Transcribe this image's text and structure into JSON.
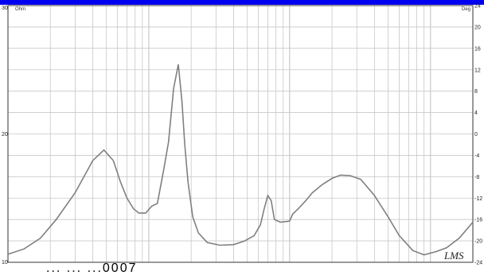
{
  "colors": {
    "title_bar": "#0000f0",
    "curve": "#808080",
    "grid": "#c8c8c8",
    "background": "#ffffff",
    "frame": "#333333"
  },
  "chart_data": {
    "type": "line",
    "title": "",
    "left_axis": {
      "unit_label": "Ohm",
      "tick_labels": [
        "30",
        "20",
        "10"
      ],
      "range": [
        10,
        30
      ]
    },
    "right_axis": {
      "unit_label": "Deg",
      "ylim": [
        -24,
        24
      ],
      "ticks": [
        24,
        20,
        16,
        12,
        8,
        4,
        0,
        -4,
        -8,
        -12,
        -16,
        -20,
        -24
      ],
      "tick_labels": [
        "24",
        "20",
        "16",
        "12",
        "8",
        "4",
        "0",
        "-4",
        "-8",
        "-12",
        "-16",
        "-20",
        "-24"
      ]
    },
    "x_scale": "log",
    "xlim": [
      10,
      20000
    ],
    "x_tick_labels_visible": false,
    "grid": true,
    "series": [
      {
        "x": [
          10,
          13,
          17,
          22,
          30,
          40,
          48,
          56,
          63,
          70,
          78,
          85,
          95,
          105,
          115,
          128,
          138,
          150,
          162,
          172,
          180,
          190,
          205,
          225,
          260,
          320,
          400,
          480,
          560,
          620,
          660,
          700,
          740,
          780,
          860,
          920,
          1000,
          1050,
          1150,
          1300,
          1450,
          1700,
          2000,
          2300,
          2700,
          3200,
          4000,
          5000,
          6000,
          7500,
          9000,
          11000,
          13000,
          16000,
          20000
        ],
        "y": [
          -22.5,
          -21.5,
          -19.5,
          -16,
          -11,
          -5,
          -3,
          -5,
          -9,
          -12,
          -14,
          -14.8,
          -14.8,
          -13.5,
          -13,
          -6.5,
          -1.5,
          8.5,
          13,
          6,
          -2,
          -9,
          -15.5,
          -18.5,
          -20.3,
          -20.8,
          -20.7,
          -20,
          -19,
          -17,
          -14,
          -11.5,
          -12.5,
          -16,
          -16.5,
          -16.4,
          -16.3,
          -15,
          -14,
          -12.5,
          -11,
          -9.5,
          -8.3,
          -7.7,
          -7.8,
          -8.5,
          -11.5,
          -15.5,
          -19,
          -21.8,
          -22.6,
          -22,
          -21.3,
          -19.5,
          -16.5
        ]
      }
    ],
    "logo_text": "LMS"
  },
  "footer_text": "... ... ...0007"
}
